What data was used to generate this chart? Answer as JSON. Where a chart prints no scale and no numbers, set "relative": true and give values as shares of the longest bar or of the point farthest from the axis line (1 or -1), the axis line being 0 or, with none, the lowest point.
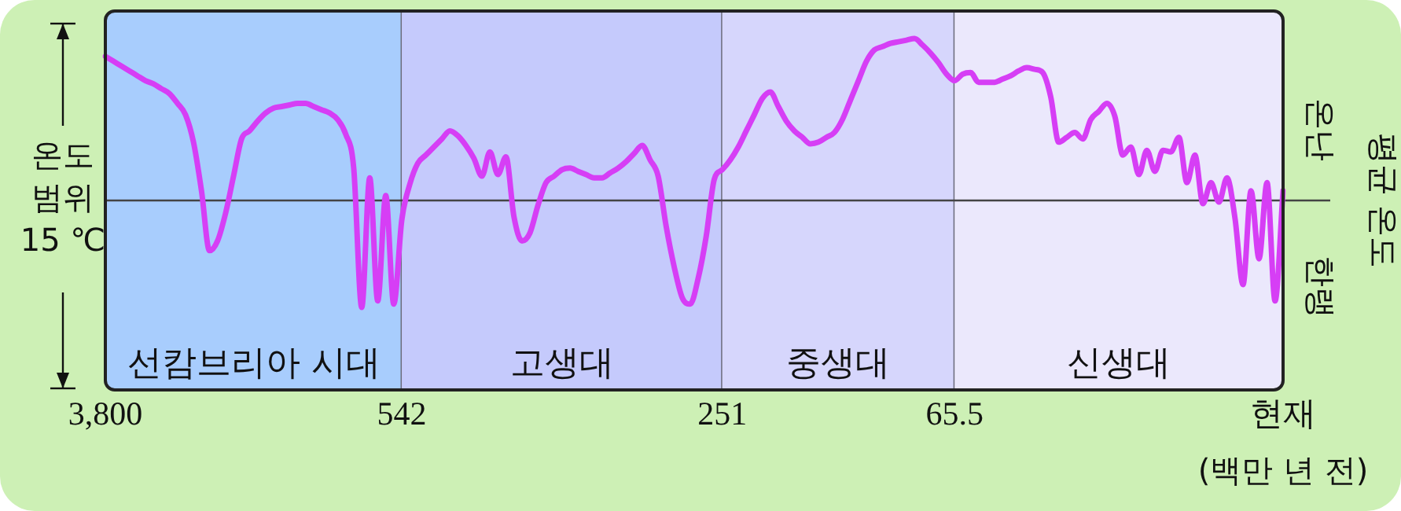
{
  "chart_data": {
    "type": "line",
    "relative": true,
    "xlabel": "(백만 년 전)",
    "categories": [
      "3,800",
      null,
      null,
      null,
      null,
      null,
      null,
      null,
      null,
      null,
      null,
      null,
      null,
      null,
      null,
      null,
      null,
      null,
      null,
      null,
      null,
      null,
      null,
      null,
      null,
      null,
      null,
      null,
      null,
      null,
      null,
      null,
      null,
      null,
      null,
      null,
      null,
      "542",
      null,
      null,
      null,
      null,
      null,
      null,
      null,
      null,
      null,
      null,
      null,
      null,
      null,
      null,
      null,
      null,
      null,
      null,
      null,
      null,
      null,
      null,
      null,
      null,
      null,
      null,
      null,
      null,
      null,
      null,
      null,
      null,
      null,
      null,
      null,
      null,
      null,
      null,
      null,
      "251",
      null,
      null,
      null,
      null,
      null,
      null,
      null,
      null,
      null,
      null,
      null,
      null,
      null,
      null,
      null,
      null,
      null,
      null,
      null,
      null,
      null,
      null,
      null,
      null,
      null,
      null,
      null,
      null,
      "65.5",
      null,
      null,
      null,
      null,
      null,
      null,
      null,
      null,
      null,
      null,
      null,
      null,
      null,
      null,
      null,
      null,
      null,
      null,
      null,
      null,
      null,
      null,
      null,
      null,
      null,
      null,
      null,
      null,
      null,
      null,
      null,
      null,
      null,
      null,
      null,
      null,
      null,
      null,
      null,
      null,
      "현재"
    ],
    "series": [
      {
        "color": "#d63ef5",
        "values": [
          0.89,
          0.86,
          0.83,
          0.8,
          0.77,
          0.74,
          0.72,
          0.69,
          0.66,
          0.6,
          0.53,
          0.36,
          0.06,
          -0.31,
          -0.25,
          -0.08,
          0.15,
          0.38,
          0.43,
          0.49,
          0.54,
          0.57,
          0.58,
          0.59,
          0.6,
          0.6,
          0.58,
          0.56,
          0.54,
          0.5,
          0.41,
          0.2,
          -0.66,
          0.14,
          -0.62,
          0.03,
          -0.64,
          -0.12,
          0.1,
          0.23,
          0.28,
          0.33,
          0.38,
          0.43,
          0.4,
          0.34,
          0.26,
          0.15,
          0.3,
          0.16,
          0.27,
          -0.1,
          -0.25,
          -0.2,
          -0.03,
          0.11,
          0.15,
          0.19,
          0.2,
          0.18,
          0.16,
          0.14,
          0.14,
          0.17,
          0.2,
          0.24,
          0.29,
          0.34,
          0.25,
          0.15,
          -0.16,
          -0.41,
          -0.6,
          -0.64,
          -0.48,
          -0.22,
          0.13,
          0.19,
          0.25,
          0.33,
          0.43,
          0.53,
          0.63,
          0.67,
          0.58,
          0.49,
          0.43,
          0.39,
          0.35,
          0.36,
          0.39,
          0.42,
          0.5,
          0.62,
          0.74,
          0.86,
          0.93,
          0.95,
          0.97,
          0.98,
          0.99,
          1.0,
          0.96,
          0.91,
          0.85,
          0.78,
          0.74,
          0.78,
          0.79,
          0.73,
          0.73,
          0.73,
          0.75,
          0.77,
          0.8,
          0.82,
          0.81,
          0.79,
          0.64,
          0.36,
          0.39,
          0.42,
          0.38,
          0.5,
          0.55,
          0.6,
          0.52,
          0.28,
          0.33,
          0.16,
          0.31,
          0.18,
          0.31,
          0.3,
          0.39,
          0.11,
          0.28,
          -0.02,
          0.11,
          -0.01,
          0.14,
          -0.11,
          -0.52,
          0.06,
          -0.36,
          0.11,
          -0.62,
          0.06
        ]
      }
    ],
    "bands": [
      {
        "axis": "x",
        "from": "3,800",
        "to": "542",
        "label": "선캄브리아 시대",
        "color": "#a8cdfd"
      },
      {
        "axis": "x",
        "from": "542",
        "to": "251",
        "label": "고생대",
        "color": "#c5cafc"
      },
      {
        "axis": "x",
        "from": "251",
        "to": "65.5",
        "label": "중생대",
        "color": "#d6d6fc"
      },
      {
        "axis": "x",
        "from": "65.5",
        "to": "현재",
        "label": "신생대",
        "color": "#ebe8fc"
      }
    ],
    "ref_lines": [
      {
        "axis": "y",
        "value": 0,
        "label": "평균 온도",
        "color": "#444444"
      }
    ],
    "annotations": [
      "온도 범위 15 ℃",
      "온난",
      "한랭"
    ],
    "grid": false,
    "legend": false,
    "marker": "none",
    "line_style": "solid"
  }
}
